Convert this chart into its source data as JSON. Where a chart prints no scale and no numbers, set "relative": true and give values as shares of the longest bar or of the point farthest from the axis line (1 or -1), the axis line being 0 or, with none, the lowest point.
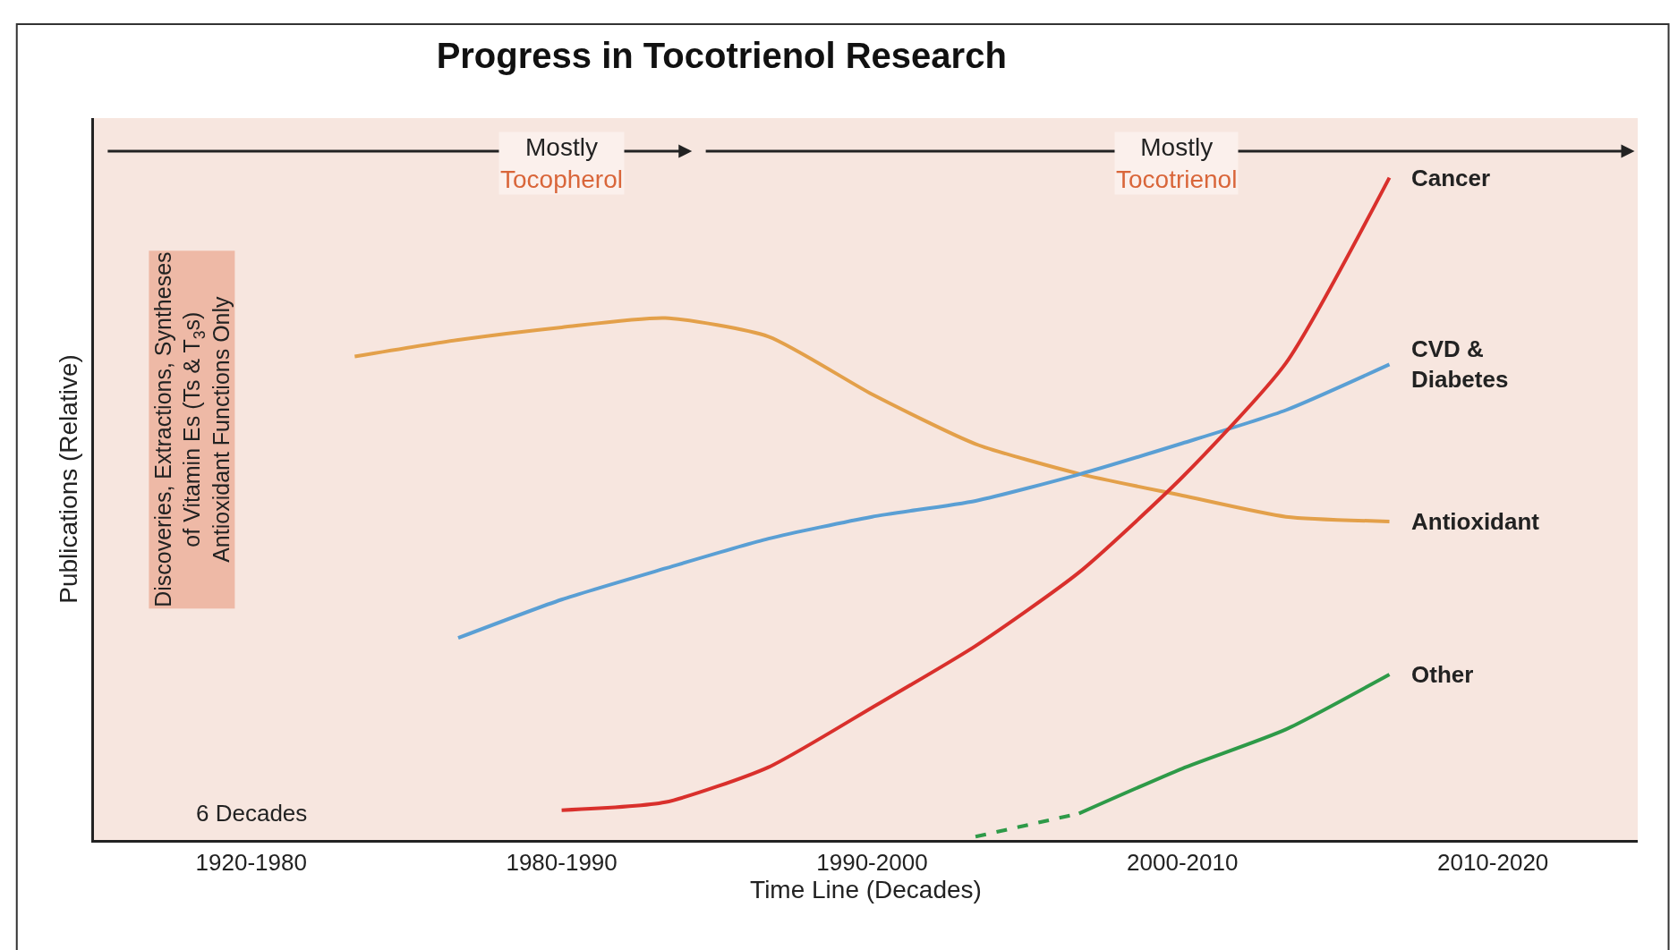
{
  "chart_data": {
    "type": "line",
    "title": "Progress in Tocotrienol Research",
    "xlabel": "Time Line (Decades)",
    "ylabel": "Publications (Relative)",
    "relative": true,
    "grid": false,
    "legend": false,
    "marker": "none",
    "categories": [
      null,
      "1920-1980",
      null,
      null,
      "1980-1990",
      null,
      null,
      "1990-2000",
      null,
      null,
      "2000-2010",
      null,
      null,
      "2010-2020",
      null
    ],
    "series": [
      {
        "name": "Antioxidant",
        "color": "#e3a04a",
        "line_style": "solid",
        "values": [
          null,
          null,
          0.73,
          0.755,
          0.774,
          0.788,
          0.76,
          0.673,
          0.598,
          0.553,
          0.52,
          0.488,
          0.481,
          null,
          null
        ]
      },
      {
        "name": "CVD &\nDiabetes",
        "color": "#5a9fd4",
        "line_style": "solid",
        "values": [
          null,
          null,
          null,
          0.305,
          0.363,
          0.41,
          0.455,
          0.488,
          0.512,
          0.552,
          0.599,
          0.649,
          0.718,
          null,
          null
        ]
      },
      {
        "name": "Cancer",
        "color": "#d9302c",
        "line_style": "solid",
        "values": [
          null,
          null,
          null,
          null,
          0.045,
          0.057,
          0.11,
          0.2,
          0.293,
          0.404,
          0.548,
          0.72,
          1.0,
          null,
          null
        ]
      },
      {
        "name": "Other",
        "color": "#2e9a48",
        "line_style": "solid",
        "values": [
          null,
          null,
          null,
          null,
          null,
          null,
          null,
          null,
          null,
          0.04,
          0.108,
          0.167,
          0.25,
          null,
          null
        ]
      },
      {
        "color": "#2e9a48",
        "line_style": "dashed",
        "values": [
          null,
          null,
          null,
          null,
          null,
          null,
          null,
          null,
          0.005,
          0.04,
          null,
          null,
          null,
          null,
          null
        ]
      }
    ],
    "annotations": [
      "Mostly\nTocopherol",
      "Mostly\nTocotrienol",
      "Discoveries, Extractions, Syntheses\nof Vitamin Es (Ts & T$_{3}$s)\nAntioxidant Functions Only",
      "6 Decades"
    ]
  }
}
